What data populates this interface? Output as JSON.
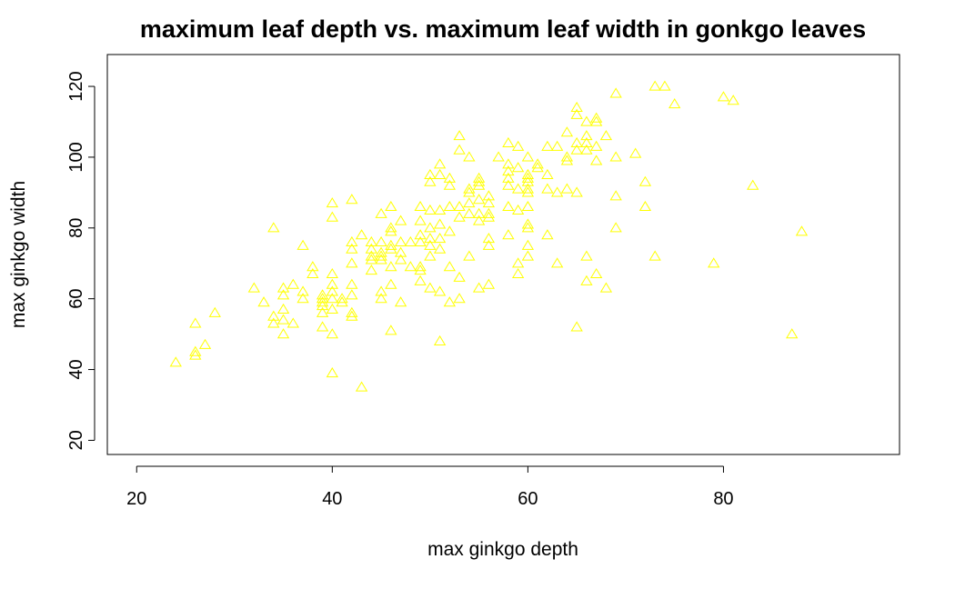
{
  "chart_data": {
    "type": "scatter",
    "title": "maximum leaf depth vs. maximum leaf width in gonkgo leaves",
    "xlabel": "max ginkgo depth",
    "ylabel": "max ginkgo width",
    "xlim": [
      17,
      98
    ],
    "ylim": [
      16,
      129
    ],
    "xticks": [
      20,
      40,
      60,
      80
    ],
    "yticks": [
      20,
      40,
      60,
      80,
      100,
      120
    ],
    "marker": "open-triangle",
    "color": "#ffff00",
    "grid": false,
    "legend": "none",
    "points": [
      [
        24,
        42
      ],
      [
        26,
        53
      ],
      [
        26,
        45
      ],
      [
        26,
        44
      ],
      [
        27,
        47
      ],
      [
        28,
        56
      ],
      [
        32,
        63
      ],
      [
        33,
        59
      ],
      [
        34,
        80
      ],
      [
        34,
        55
      ],
      [
        34,
        53
      ],
      [
        35,
        63
      ],
      [
        35,
        61
      ],
      [
        35,
        57
      ],
      [
        35,
        54
      ],
      [
        35,
        50
      ],
      [
        36,
        64
      ],
      [
        36,
        53
      ],
      [
        37,
        75
      ],
      [
        37,
        62
      ],
      [
        37,
        60
      ],
      [
        38,
        69
      ],
      [
        38,
        67
      ],
      [
        39,
        61
      ],
      [
        39,
        60
      ],
      [
        39,
        59
      ],
      [
        39,
        58
      ],
      [
        39,
        56
      ],
      [
        39,
        52
      ],
      [
        40,
        87
      ],
      [
        40,
        83
      ],
      [
        40,
        67
      ],
      [
        40,
        64
      ],
      [
        40,
        62
      ],
      [
        40,
        60
      ],
      [
        40,
        57
      ],
      [
        40,
        50
      ],
      [
        40,
        39
      ],
      [
        41,
        60
      ],
      [
        41,
        59
      ],
      [
        42,
        88
      ],
      [
        42,
        76
      ],
      [
        42,
        74
      ],
      [
        42,
        70
      ],
      [
        42,
        64
      ],
      [
        42,
        61
      ],
      [
        42,
        56
      ],
      [
        42,
        55
      ],
      [
        43,
        78
      ],
      [
        43,
        35
      ],
      [
        44,
        76
      ],
      [
        44,
        74
      ],
      [
        44,
        72
      ],
      [
        44,
        71
      ],
      [
        44,
        68
      ],
      [
        45,
        84
      ],
      [
        45,
        76
      ],
      [
        45,
        73
      ],
      [
        45,
        72
      ],
      [
        45,
        71
      ],
      [
        45,
        62
      ],
      [
        45,
        60
      ],
      [
        46,
        86
      ],
      [
        46,
        80
      ],
      [
        46,
        79
      ],
      [
        46,
        75
      ],
      [
        46,
        74
      ],
      [
        46,
        69
      ],
      [
        46,
        64
      ],
      [
        46,
        51
      ],
      [
        47,
        82
      ],
      [
        47,
        76
      ],
      [
        47,
        73
      ],
      [
        47,
        71
      ],
      [
        47,
        59
      ],
      [
        48,
        76
      ],
      [
        48,
        69
      ],
      [
        49,
        86
      ],
      [
        49,
        82
      ],
      [
        49,
        78
      ],
      [
        49,
        76
      ],
      [
        49,
        69
      ],
      [
        49,
        68
      ],
      [
        49,
        65
      ],
      [
        50,
        95
      ],
      [
        50,
        93
      ],
      [
        50,
        85
      ],
      [
        50,
        80
      ],
      [
        50,
        77
      ],
      [
        50,
        75
      ],
      [
        50,
        72
      ],
      [
        50,
        63
      ],
      [
        51,
        98
      ],
      [
        51,
        95
      ],
      [
        51,
        85
      ],
      [
        51,
        81
      ],
      [
        51,
        77
      ],
      [
        51,
        74
      ],
      [
        51,
        62
      ],
      [
        51,
        48
      ],
      [
        52,
        94
      ],
      [
        52,
        92
      ],
      [
        52,
        86
      ],
      [
        52,
        79
      ],
      [
        52,
        69
      ],
      [
        52,
        59
      ],
      [
        53,
        106
      ],
      [
        53,
        102
      ],
      [
        53,
        86
      ],
      [
        53,
        83
      ],
      [
        53,
        66
      ],
      [
        53,
        60
      ],
      [
        54,
        100
      ],
      [
        54,
        91
      ],
      [
        54,
        90
      ],
      [
        54,
        87
      ],
      [
        54,
        84
      ],
      [
        54,
        72
      ],
      [
        55,
        94
      ],
      [
        55,
        93
      ],
      [
        55,
        92
      ],
      [
        55,
        88
      ],
      [
        55,
        84
      ],
      [
        55,
        82
      ],
      [
        55,
        63
      ],
      [
        56,
        89
      ],
      [
        56,
        87
      ],
      [
        56,
        84
      ],
      [
        56,
        83
      ],
      [
        56,
        77
      ],
      [
        56,
        75
      ],
      [
        56,
        64
      ],
      [
        57,
        100
      ],
      [
        58,
        104
      ],
      [
        58,
        98
      ],
      [
        58,
        96
      ],
      [
        58,
        94
      ],
      [
        58,
        92
      ],
      [
        58,
        86
      ],
      [
        58,
        78
      ],
      [
        59,
        103
      ],
      [
        59,
        97
      ],
      [
        59,
        91
      ],
      [
        59,
        85
      ],
      [
        59,
        70
      ],
      [
        59,
        67
      ],
      [
        60,
        100
      ],
      [
        60,
        95
      ],
      [
        60,
        94
      ],
      [
        60,
        93
      ],
      [
        60,
        91
      ],
      [
        60,
        90
      ],
      [
        60,
        86
      ],
      [
        60,
        81
      ],
      [
        60,
        80
      ],
      [
        60,
        75
      ],
      [
        60,
        72
      ],
      [
        61,
        98
      ],
      [
        61,
        97
      ],
      [
        62,
        103
      ],
      [
        62,
        95
      ],
      [
        62,
        91
      ],
      [
        62,
        78
      ],
      [
        63,
        103
      ],
      [
        63,
        90
      ],
      [
        63,
        70
      ],
      [
        64,
        107
      ],
      [
        64,
        100
      ],
      [
        64,
        99
      ],
      [
        64,
        91
      ],
      [
        65,
        114
      ],
      [
        65,
        112
      ],
      [
        65,
        104
      ],
      [
        65,
        102
      ],
      [
        65,
        90
      ],
      [
        65,
        52
      ],
      [
        66,
        110
      ],
      [
        66,
        106
      ],
      [
        66,
        104
      ],
      [
        66,
        102
      ],
      [
        66,
        72
      ],
      [
        66,
        65
      ],
      [
        67,
        111
      ],
      [
        67,
        110
      ],
      [
        67,
        103
      ],
      [
        67,
        99
      ],
      [
        67,
        67
      ],
      [
        68,
        106
      ],
      [
        68,
        63
      ],
      [
        69,
        118
      ],
      [
        69,
        100
      ],
      [
        69,
        89
      ],
      [
        69,
        80
      ],
      [
        71,
        101
      ],
      [
        72,
        93
      ],
      [
        72,
        86
      ],
      [
        73,
        120
      ],
      [
        73,
        72
      ],
      [
        74,
        120
      ],
      [
        75,
        115
      ],
      [
        79,
        70
      ],
      [
        80,
        117
      ],
      [
        81,
        116
      ],
      [
        83,
        92
      ],
      [
        87,
        50
      ],
      [
        88,
        79
      ]
    ]
  }
}
